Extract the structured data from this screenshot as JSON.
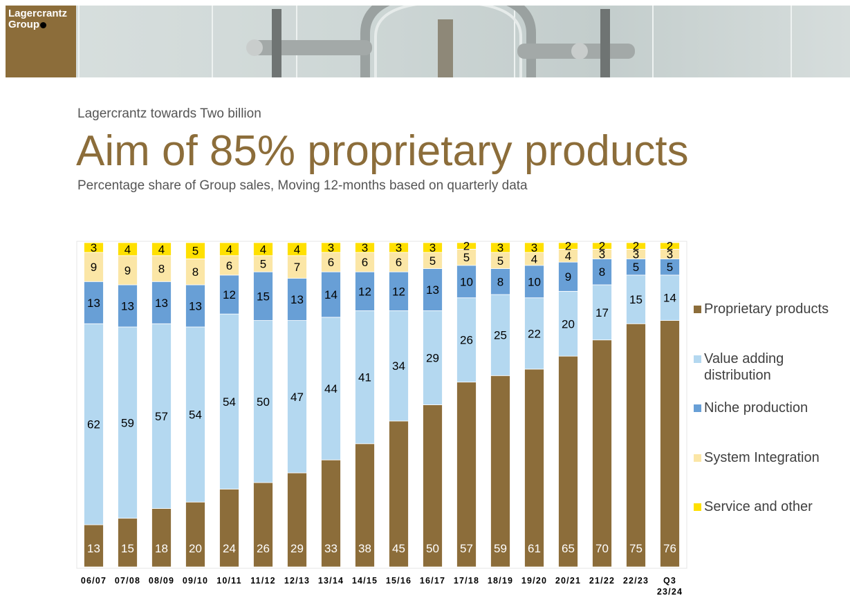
{
  "logo": {
    "line1": "Lagercrantz",
    "line2": "Group"
  },
  "header": {
    "kicker": "Lagercrantz towards Two billion",
    "title": "Aim of 85% proprietary products",
    "subtitle": "Percentage share of Group sales, Moving 12-months based on quarterly data"
  },
  "colors": {
    "brand": "#8c6d3a",
    "proprietary": "#8c6d3a",
    "value_adding": "#b4d8f0",
    "niche": "#689fd6",
    "system_integration": "#fbe6a6",
    "service": "#ffe000"
  },
  "chart_data": {
    "type": "bar",
    "stacked": true,
    "ylim": [
      0,
      100
    ],
    "grid": false,
    "legend_position": "right",
    "categories": [
      "06/07",
      "07/08",
      "08/09",
      "09/10",
      "10/11",
      "11/12",
      "12/13",
      "13/14",
      "14/15",
      "15/16",
      "16/17",
      "17/18",
      "18/19",
      "19/20",
      "20/21",
      "21/22",
      "22/23",
      "Q3 23/24"
    ],
    "series": [
      {
        "name": "Proprietary products",
        "color": "#8c6d3a",
        "label_color": "#ffffff",
        "values": [
          13,
          15,
          18,
          20,
          24,
          26,
          29,
          33,
          38,
          45,
          50,
          57,
          59,
          61,
          65,
          70,
          75,
          76
        ]
      },
      {
        "name": "Value adding distribution",
        "color": "#b4d8f0",
        "label_color": "#000000",
        "values": [
          62,
          59,
          57,
          54,
          54,
          50,
          47,
          44,
          41,
          34,
          29,
          26,
          25,
          22,
          20,
          17,
          15,
          14
        ]
      },
      {
        "name": "Niche production",
        "color": "#689fd6",
        "label_color": "#000000",
        "values": [
          13,
          13,
          13,
          13,
          12,
          15,
          13,
          14,
          12,
          12,
          13,
          10,
          8,
          10,
          9,
          8,
          5,
          5
        ]
      },
      {
        "name": "System Integration",
        "color": "#fbe6a6",
        "label_color": "#000000",
        "values": [
          9,
          9,
          8,
          8,
          6,
          5,
          7,
          6,
          6,
          6,
          5,
          5,
          5,
          4,
          4,
          3,
          3,
          3
        ]
      },
      {
        "name": "Service and other",
        "color": "#ffe000",
        "label_color": "#000000",
        "values": [
          3,
          4,
          4,
          5,
          4,
          4,
          4,
          3,
          3,
          3,
          3,
          2,
          3,
          3,
          2,
          2,
          2,
          2
        ]
      }
    ]
  }
}
